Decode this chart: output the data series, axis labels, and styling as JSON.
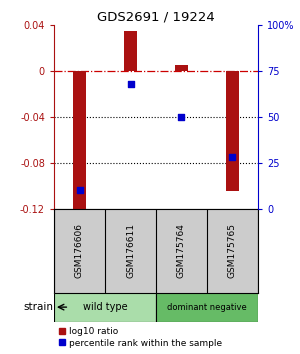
{
  "title": "GDS2691 / 19224",
  "samples": [
    "GSM176606",
    "GSM176611",
    "GSM175764",
    "GSM175765"
  ],
  "log10_ratio": [
    -0.12,
    0.035,
    0.005,
    -0.105
  ],
  "percentile_rank": [
    10,
    68,
    50,
    28
  ],
  "bar_color": "#aa1111",
  "dot_color": "#0000cc",
  "ylim_left": [
    -0.12,
    0.04
  ],
  "ylim_right": [
    0,
    100
  ],
  "yticks_left": [
    0.04,
    0.0,
    -0.04,
    -0.08,
    -0.12
  ],
  "ytick_labels_left": [
    "0.04",
    "0",
    "-0.04",
    "-0.08",
    "-0.12"
  ],
  "yticks_right": [
    100,
    75,
    50,
    25,
    0
  ],
  "ytick_labels_right": [
    "100%",
    "75",
    "50",
    "25",
    "0"
  ],
  "hlines_dotted": [
    -0.04,
    -0.08
  ],
  "hline_dashdot": 0.0,
  "strain_groups": [
    {
      "label": "wild type",
      "samples": [
        0,
        1
      ],
      "color": "#aaddaa"
    },
    {
      "label": "dominant negative",
      "samples": [
        2,
        3
      ],
      "color": "#66bb66"
    }
  ],
  "strain_label": "strain",
  "legend_ratio_label": "log10 ratio",
  "legend_pct_label": "percentile rank within the sample",
  "bar_width": 0.25,
  "bg_color": "#ffffff",
  "plot_bg": "#ffffff",
  "gsm_bg": "#cccccc"
}
